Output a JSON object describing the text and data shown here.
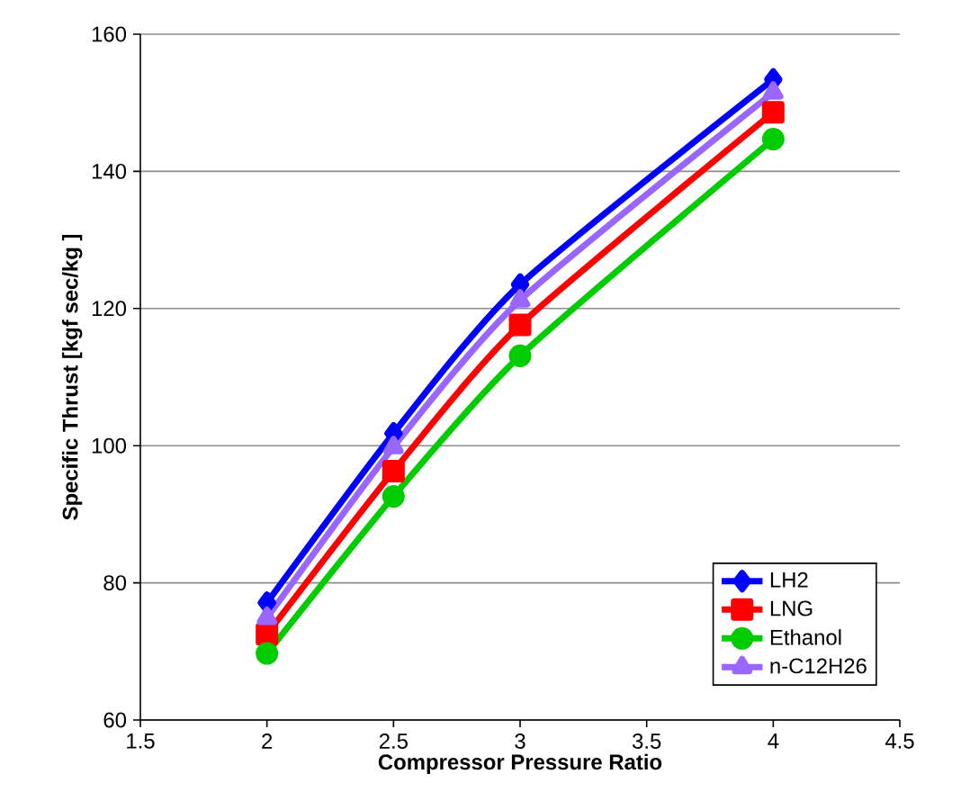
{
  "chart_data": {
    "type": "line",
    "xlabel": "Compressor Pressure Ratio",
    "ylabel": "Specific Thrust [kgf sec/kg ]",
    "x": [
      2,
      2.5,
      3,
      4
    ],
    "series": [
      {
        "name": "LH2",
        "color": "#0000ff",
        "marker": "diamond",
        "values": [
          77.1,
          101.8,
          123.5,
          153.4
        ]
      },
      {
        "name": "LNG",
        "color": "#ff0000",
        "marker": "square",
        "values": [
          72.5,
          96.3,
          117.6,
          148.6
        ]
      },
      {
        "name": "Ethanol",
        "color": "#00cc00",
        "marker": "circle",
        "values": [
          69.7,
          92.6,
          113.1,
          144.7
        ]
      },
      {
        "name": "n-C12H26",
        "color": "#9966ff",
        "marker": "triangle",
        "values": [
          74.9,
          99.8,
          121.2,
          151.5
        ]
      }
    ],
    "xlim": [
      1.5,
      4.5
    ],
    "ylim": [
      60,
      160
    ],
    "xticks": [
      1.5,
      2,
      2.5,
      3,
      3.5,
      4,
      4.5
    ],
    "yticks": [
      60,
      80,
      100,
      120,
      140,
      160
    ],
    "grid": "y",
    "legend": "bottom right",
    "line_style": "solid"
  }
}
